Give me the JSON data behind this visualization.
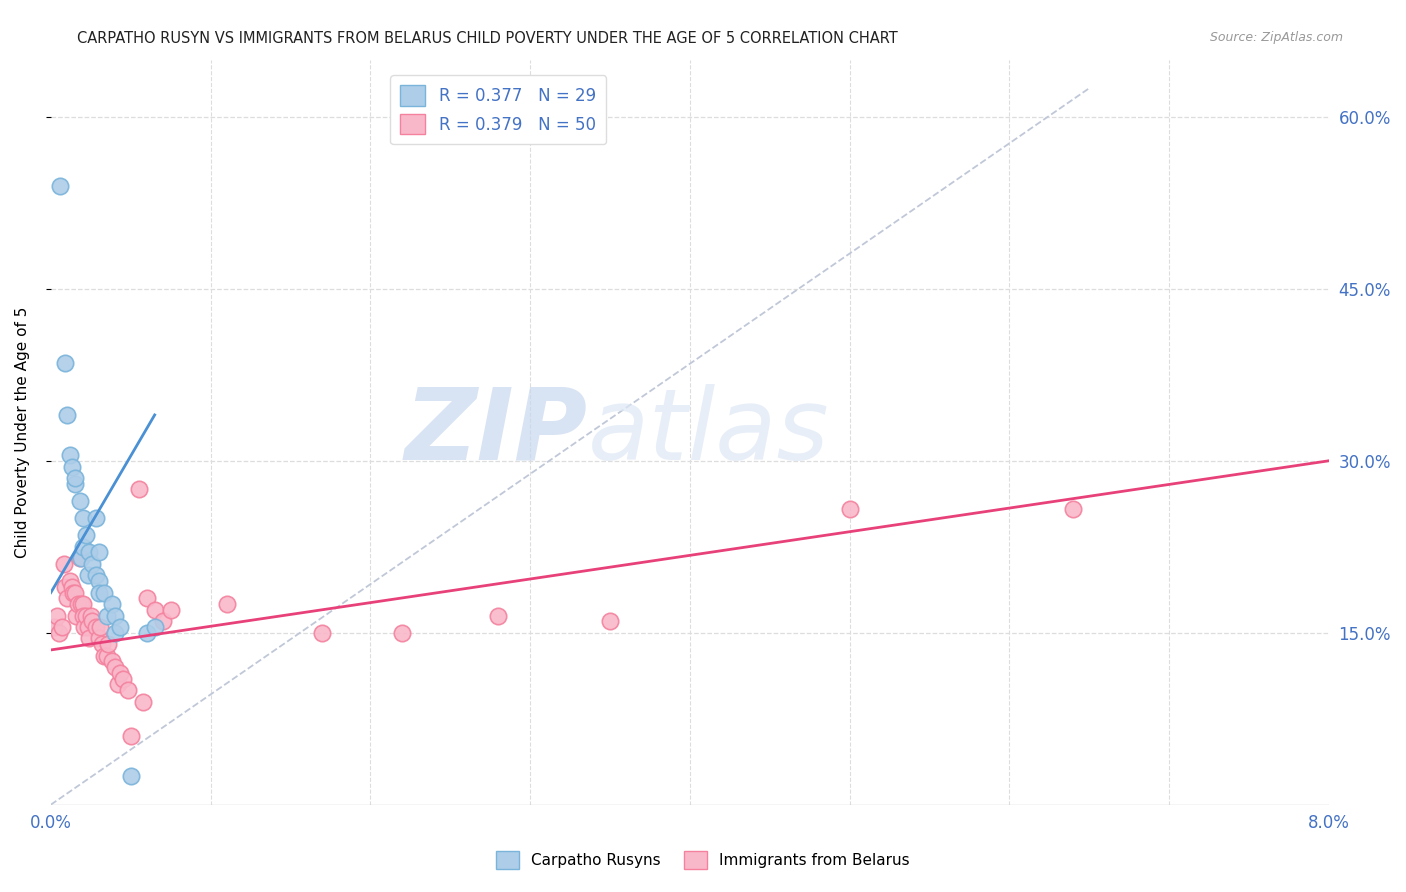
{
  "title": "CARPATHO RUSYN VS IMMIGRANTS FROM BELARUS CHILD POVERTY UNDER THE AGE OF 5 CORRELATION CHART",
  "source": "Source: ZipAtlas.com",
  "ylabel": "Child Poverty Under the Age of 5",
  "ytick_labels": [
    "15.0%",
    "30.0%",
    "45.0%",
    "60.0%"
  ],
  "ytick_values": [
    0.15,
    0.3,
    0.45,
    0.6
  ],
  "xlim": [
    0.0,
    0.08
  ],
  "ylim": [
    0.0,
    0.65
  ],
  "legend_label1": "R = 0.377   N = 29",
  "legend_label2": "R = 0.379   N = 50",
  "legend_group1": "Carpatho Rusyns",
  "legend_group2": "Immigrants from Belarus",
  "watermark_zip": "ZIP",
  "watermark_atlas": "atlas",
  "blue_color": "#7ab4db",
  "blue_fill": "#aecde8",
  "pink_color": "#f4829e",
  "pink_fill": "#f9b8ca",
  "blue_line_color": "#4a90d4",
  "pink_line_color": "#e8417a",
  "diag_color": "#c0c8d8",
  "title_color": "#222222",
  "source_color": "#999999",
  "axis_color": "#4472C4",
  "grid_color": "#dddddd",
  "blue_points": [
    [
      0.0006,
      0.54
    ],
    [
      0.0009,
      0.385
    ],
    [
      0.001,
      0.34
    ],
    [
      0.0012,
      0.305
    ],
    [
      0.0013,
      0.295
    ],
    [
      0.0015,
      0.28
    ],
    [
      0.0015,
      0.285
    ],
    [
      0.0018,
      0.265
    ],
    [
      0.0019,
      0.215
    ],
    [
      0.002,
      0.25
    ],
    [
      0.002,
      0.225
    ],
    [
      0.0022,
      0.235
    ],
    [
      0.0023,
      0.2
    ],
    [
      0.0024,
      0.22
    ],
    [
      0.0026,
      0.21
    ],
    [
      0.0028,
      0.25
    ],
    [
      0.0028,
      0.2
    ],
    [
      0.003,
      0.22
    ],
    [
      0.003,
      0.195
    ],
    [
      0.003,
      0.185
    ],
    [
      0.0033,
      0.185
    ],
    [
      0.0035,
      0.165
    ],
    [
      0.0038,
      0.175
    ],
    [
      0.004,
      0.165
    ],
    [
      0.004,
      0.15
    ],
    [
      0.0043,
      0.155
    ],
    [
      0.005,
      0.025
    ],
    [
      0.006,
      0.15
    ],
    [
      0.0065,
      0.155
    ]
  ],
  "pink_points": [
    [
      0.0002,
      0.155
    ],
    [
      0.0004,
      0.165
    ],
    [
      0.0005,
      0.15
    ],
    [
      0.0007,
      0.155
    ],
    [
      0.0008,
      0.21
    ],
    [
      0.0009,
      0.19
    ],
    [
      0.001,
      0.18
    ],
    [
      0.0012,
      0.195
    ],
    [
      0.0013,
      0.19
    ],
    [
      0.0014,
      0.185
    ],
    [
      0.0015,
      0.185
    ],
    [
      0.0016,
      0.165
    ],
    [
      0.0017,
      0.175
    ],
    [
      0.0018,
      0.215
    ],
    [
      0.0019,
      0.175
    ],
    [
      0.002,
      0.175
    ],
    [
      0.002,
      0.165
    ],
    [
      0.0021,
      0.155
    ],
    [
      0.0022,
      0.165
    ],
    [
      0.0023,
      0.155
    ],
    [
      0.0024,
      0.145
    ],
    [
      0.0025,
      0.165
    ],
    [
      0.0026,
      0.16
    ],
    [
      0.0028,
      0.155
    ],
    [
      0.003,
      0.145
    ],
    [
      0.0031,
      0.155
    ],
    [
      0.0032,
      0.14
    ],
    [
      0.0033,
      0.13
    ],
    [
      0.0035,
      0.13
    ],
    [
      0.0036,
      0.14
    ],
    [
      0.0038,
      0.125
    ],
    [
      0.004,
      0.12
    ],
    [
      0.0042,
      0.105
    ],
    [
      0.0043,
      0.115
    ],
    [
      0.0045,
      0.11
    ],
    [
      0.0048,
      0.1
    ],
    [
      0.005,
      0.06
    ],
    [
      0.0055,
      0.275
    ],
    [
      0.0058,
      0.09
    ],
    [
      0.006,
      0.18
    ],
    [
      0.0065,
      0.17
    ],
    [
      0.007,
      0.16
    ],
    [
      0.0075,
      0.17
    ],
    [
      0.011,
      0.175
    ],
    [
      0.017,
      0.15
    ],
    [
      0.022,
      0.15
    ],
    [
      0.028,
      0.165
    ],
    [
      0.035,
      0.16
    ],
    [
      0.05,
      0.258
    ],
    [
      0.064,
      0.258
    ]
  ],
  "blue_line": [
    [
      0.0,
      0.185
    ],
    [
      0.0065,
      0.34
    ]
  ],
  "pink_line": [
    [
      0.0,
      0.135
    ],
    [
      0.08,
      0.3
    ]
  ],
  "diag_line": [
    [
      0.0,
      0.0
    ],
    [
      0.065,
      0.625
    ]
  ]
}
